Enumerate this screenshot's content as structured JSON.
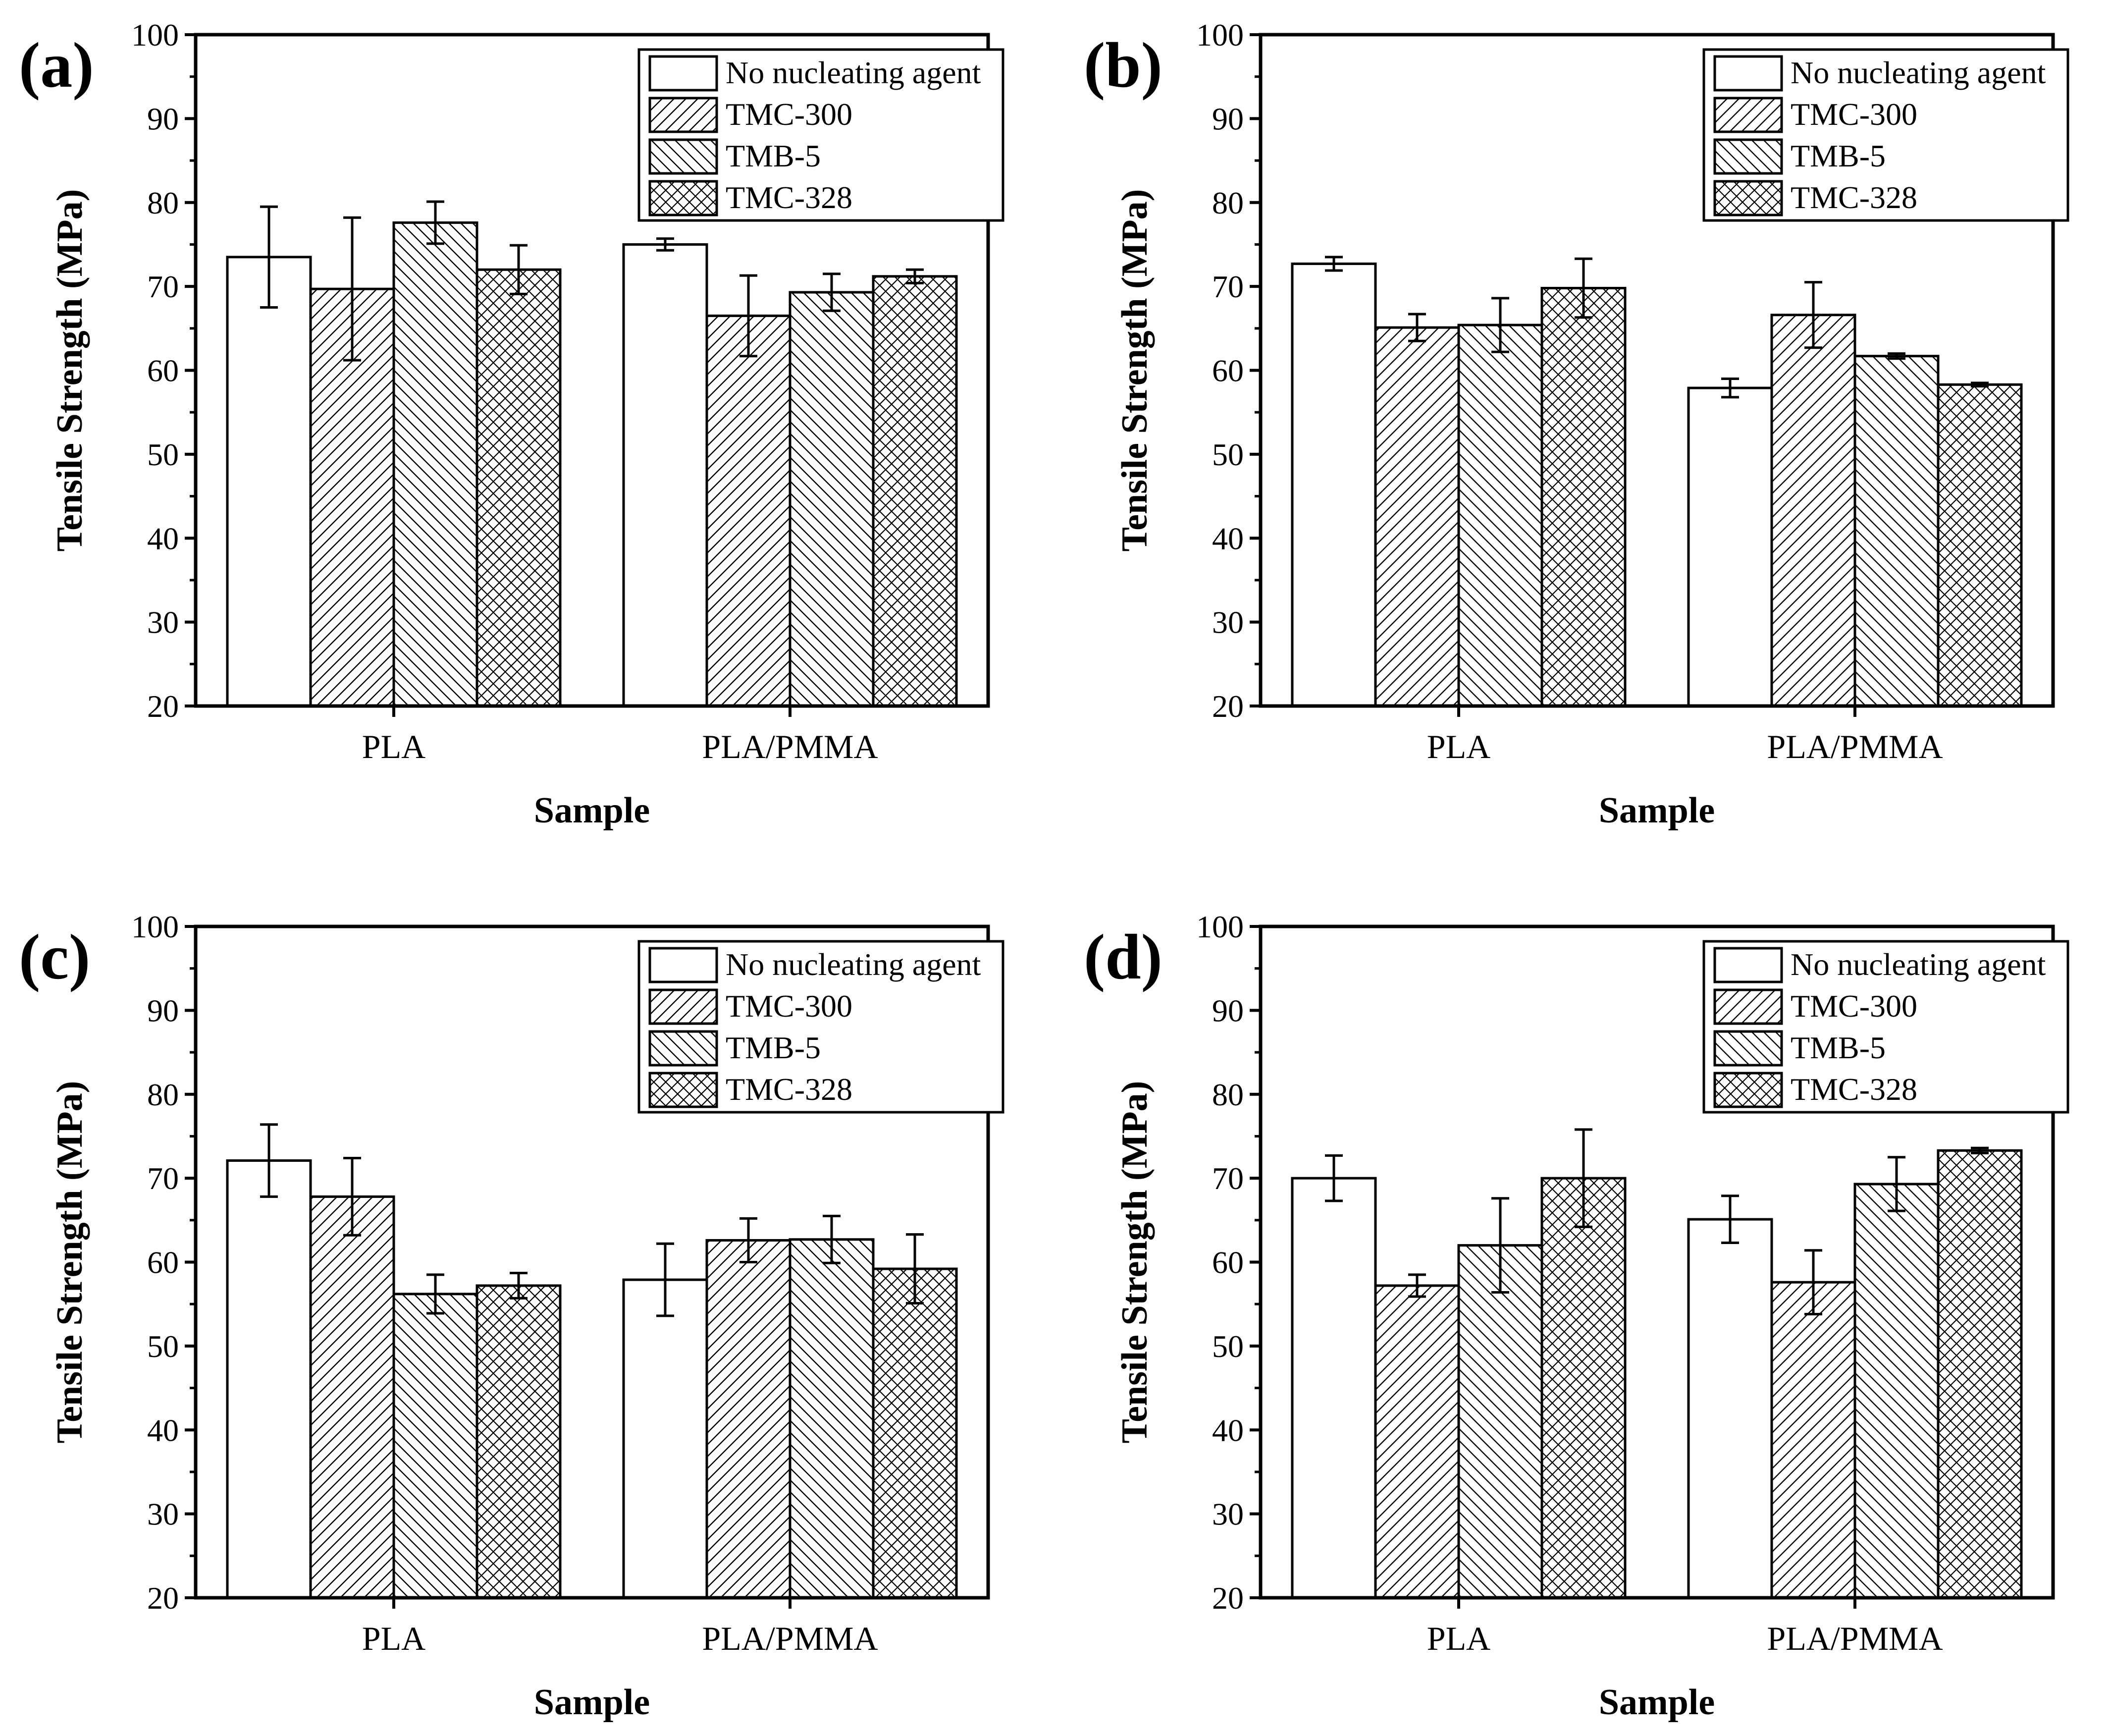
{
  "chart_data": [
    {
      "type": "bar",
      "panel_label": "(a)",
      "categories": [
        "PLA",
        "PLA/PMMA"
      ],
      "xlabel": "Sample",
      "ylabel": "Tensile Strength (MPa)",
      "ylim": [
        20,
        100
      ],
      "yticks": [
        20,
        30,
        40,
        50,
        60,
        70,
        80,
        90,
        100
      ],
      "legend_position": "top-right",
      "series": [
        {
          "name": "No nucleating agent",
          "pattern": "none",
          "values": [
            73.5,
            75.0
          ],
          "errors": [
            6.0,
            0.7
          ]
        },
        {
          "name": "TMC-300",
          "pattern": "diagonal-up",
          "values": [
            69.7,
            66.5
          ],
          "errors": [
            8.5,
            4.8
          ]
        },
        {
          "name": "TMB-5",
          "pattern": "diagonal-down",
          "values": [
            77.6,
            69.3
          ],
          "errors": [
            2.5,
            2.2
          ]
        },
        {
          "name": "TMC-328",
          "pattern": "crosshatch",
          "values": [
            72.0,
            71.2
          ],
          "errors": [
            2.9,
            0.8
          ]
        }
      ]
    },
    {
      "type": "bar",
      "panel_label": "(b)",
      "categories": [
        "PLA",
        "PLA/PMMA"
      ],
      "xlabel": "Sample",
      "ylabel": "Tensile Strength (MPa)",
      "ylim": [
        20,
        100
      ],
      "yticks": [
        20,
        30,
        40,
        50,
        60,
        70,
        80,
        90,
        100
      ],
      "legend_position": "top-right",
      "series": [
        {
          "name": "No nucleating agent",
          "pattern": "none",
          "values": [
            72.7,
            57.9
          ],
          "errors": [
            0.8,
            1.1
          ]
        },
        {
          "name": "TMC-300",
          "pattern": "diagonal-up",
          "values": [
            65.1,
            66.6
          ],
          "errors": [
            1.6,
            3.9
          ]
        },
        {
          "name": "TMB-5",
          "pattern": "diagonal-down",
          "values": [
            65.4,
            61.7
          ],
          "errors": [
            3.2,
            0.3
          ]
        },
        {
          "name": "TMC-328",
          "pattern": "crosshatch",
          "values": [
            69.8,
            58.3
          ],
          "errors": [
            3.5,
            0.2
          ]
        }
      ]
    },
    {
      "type": "bar",
      "panel_label": "(c)",
      "categories": [
        "PLA",
        "PLA/PMMA"
      ],
      "xlabel": "Sample",
      "ylabel": "Tensile Strength (MPa)",
      "ylim": [
        20,
        100
      ],
      "yticks": [
        20,
        30,
        40,
        50,
        60,
        70,
        80,
        90,
        100
      ],
      "legend_position": "top-right",
      "series": [
        {
          "name": "No nucleating agent",
          "pattern": "none",
          "values": [
            72.1,
            57.9
          ],
          "errors": [
            4.3,
            4.3
          ]
        },
        {
          "name": "TMC-300",
          "pattern": "diagonal-up",
          "values": [
            67.8,
            62.6
          ],
          "errors": [
            4.6,
            2.6
          ]
        },
        {
          "name": "TMB-5",
          "pattern": "diagonal-down",
          "values": [
            56.2,
            62.7
          ],
          "errors": [
            2.3,
            2.8
          ]
        },
        {
          "name": "TMC-328",
          "pattern": "crosshatch",
          "values": [
            57.2,
            59.2
          ],
          "errors": [
            1.5,
            4.1
          ]
        }
      ]
    },
    {
      "type": "bar",
      "panel_label": "(d)",
      "categories": [
        "PLA",
        "PLA/PMMA"
      ],
      "xlabel": "Sample",
      "ylabel": "Tensile Strength (MPa)",
      "ylim": [
        20,
        100
      ],
      "yticks": [
        20,
        30,
        40,
        50,
        60,
        70,
        80,
        90,
        100
      ],
      "legend_position": "top-right",
      "series": [
        {
          "name": "No nucleating agent",
          "pattern": "none",
          "values": [
            70.0,
            65.1
          ],
          "errors": [
            2.7,
            2.8
          ]
        },
        {
          "name": "TMC-300",
          "pattern": "diagonal-up",
          "values": [
            57.2,
            57.6
          ],
          "errors": [
            1.3,
            3.8
          ]
        },
        {
          "name": "TMB-5",
          "pattern": "diagonal-down",
          "values": [
            62.0,
            69.3
          ],
          "errors": [
            5.6,
            3.2
          ]
        },
        {
          "name": "TMC-328",
          "pattern": "crosshatch",
          "values": [
            70.0,
            73.3
          ],
          "errors": [
            5.8,
            0.3
          ]
        }
      ]
    }
  ]
}
